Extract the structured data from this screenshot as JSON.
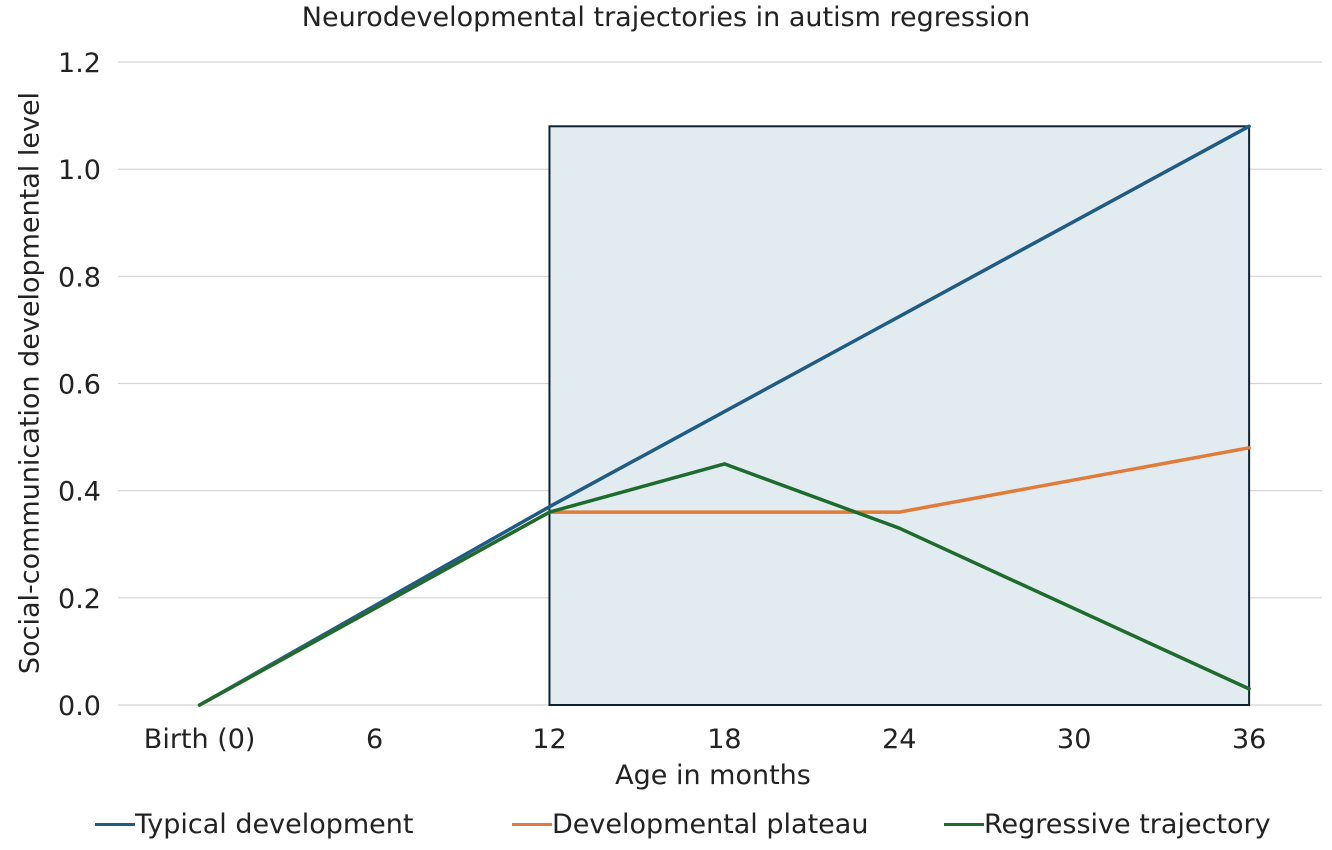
{
  "chart_data": {
    "type": "line",
    "title": "Neurodevelopmental trajectories in autism regression",
    "xlabel": "Age in months",
    "ylabel": "Social-communication developmental level",
    "x": [
      0,
      6,
      12,
      18,
      24,
      30,
      36
    ],
    "x_tick_labels": [
      "Birth (0)",
      "6",
      "12",
      "18",
      "24",
      "30",
      "36"
    ],
    "y_ticks": [
      "0.0",
      "0.2",
      "0.4",
      "0.6",
      "0.8",
      "1.0",
      "1.2"
    ],
    "xlim": [
      -2.8,
      38.5
    ],
    "ylim": [
      0,
      1.2
    ],
    "grid": "horizontal",
    "legend_position": "bottom",
    "highlight_region": {
      "x": [
        12,
        36
      ],
      "y": [
        0,
        1.08
      ]
    },
    "series": [
      {
        "name": "Typical development",
        "color": "#1f5c85",
        "points": [
          [
            0,
            0
          ],
          [
            12,
            0.37
          ],
          [
            36,
            1.08
          ]
        ]
      },
      {
        "name": "Developmental plateau",
        "color": "#e07b39",
        "points": [
          [
            0,
            0
          ],
          [
            12,
            0.36
          ],
          [
            24,
            0.36
          ],
          [
            36,
            0.48
          ]
        ]
      },
      {
        "name": "Regressive trajectory",
        "color": "#1e6b2e",
        "points": [
          [
            0,
            0
          ],
          [
            12,
            0.36
          ],
          [
            18,
            0.45
          ],
          [
            24,
            0.33
          ],
          [
            36,
            0.03
          ]
        ]
      }
    ]
  }
}
